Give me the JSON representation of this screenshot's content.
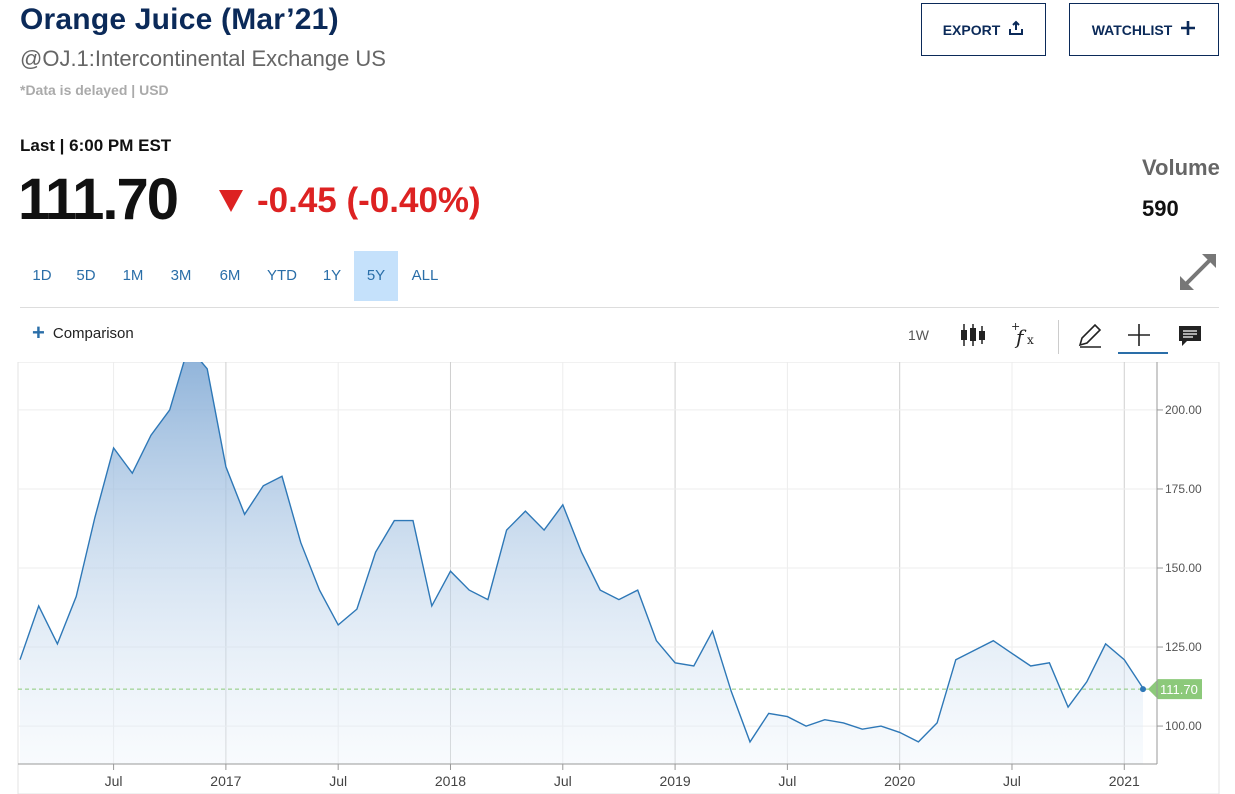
{
  "header": {
    "title": "Orange Juice (Mar’21)",
    "subtitle": "@OJ.1:Intercontinental Exchange US",
    "delayed": "*Data is delayed | USD"
  },
  "actions": {
    "export_label": "EXPORT",
    "watchlist_label": "WATCHLIST"
  },
  "quote": {
    "last_label": "Last | 6:00 PM EST",
    "price": "111.70",
    "change": "-0.45 (-0.40%)",
    "volume_label": "Volume",
    "volume_value": "590"
  },
  "ranges": [
    "1D",
    "5D",
    "1M",
    "3M",
    "6M",
    "YTD",
    "1Y",
    "5Y",
    "ALL"
  ],
  "active_range": "5Y",
  "toolbar": {
    "comparison_label": "Comparison",
    "interval_label": "1W"
  },
  "icons": [
    "export-icon",
    "plus-icon",
    "expand-icon",
    "candlestick-icon",
    "function-icon",
    "pencil-icon",
    "crosshair-icon",
    "comment-icon"
  ],
  "colors": {
    "title": "#0b2a59",
    "negative": "#dd2222",
    "link": "#2a6ea8",
    "line": "#2e78b7",
    "last_price_tag": "#8cc97a"
  },
  "chart_data": {
    "type": "area",
    "title": "",
    "xlabel": "",
    "ylabel": "",
    "x_tick_labels": [
      "Jul",
      "2017",
      "Jul",
      "2018",
      "Jul",
      "2019",
      "Jul",
      "2020",
      "Jul",
      "2021"
    ],
    "y_tick_labels": [
      "100.00",
      "125.00",
      "150.00",
      "175.00",
      "200.00"
    ],
    "ylim": [
      88,
      212
    ],
    "last_value_label": "111.70",
    "series": [
      {
        "x": [
          "2016-02",
          "2016-03",
          "2016-04",
          "2016-05",
          "2016-06",
          "2016-07",
          "2016-08",
          "2016-09",
          "2016-10",
          "2016-11",
          "2016-12",
          "2017-01",
          "2017-02",
          "2017-03",
          "2017-04",
          "2017-05",
          "2017-06",
          "2017-07",
          "2017-08",
          "2017-09",
          "2017-10",
          "2017-11",
          "2017-12",
          "2018-01",
          "2018-02",
          "2018-03",
          "2018-04",
          "2018-05",
          "2018-06",
          "2018-07",
          "2018-08",
          "2018-09",
          "2018-10",
          "2018-11",
          "2018-12",
          "2019-01",
          "2019-02",
          "2019-03",
          "2019-04",
          "2019-05",
          "2019-06",
          "2019-07",
          "2019-08",
          "2019-09",
          "2019-10",
          "2019-11",
          "2019-12",
          "2020-01",
          "2020-02",
          "2020-03",
          "2020-04",
          "2020-05",
          "2020-06",
          "2020-07",
          "2020-08",
          "2020-09",
          "2020-10",
          "2020-11",
          "2020-12",
          "2021-01",
          "2021-02"
        ],
        "values": [
          121,
          138,
          126,
          141,
          166,
          188,
          180,
          192,
          200,
          220,
          213,
          182,
          167,
          176,
          179,
          158,
          143,
          132,
          137,
          155,
          165,
          165,
          138,
          149,
          143,
          140,
          162,
          168,
          162,
          170,
          155,
          143,
          140,
          143,
          127,
          120,
          119,
          130,
          111,
          95,
          104,
          103,
          100,
          102,
          101,
          99,
          100,
          98,
          95,
          101,
          121,
          124,
          127,
          123,
          119,
          120,
          106,
          114,
          126,
          121,
          112
        ],
        "last": 111.7
      }
    ]
  }
}
